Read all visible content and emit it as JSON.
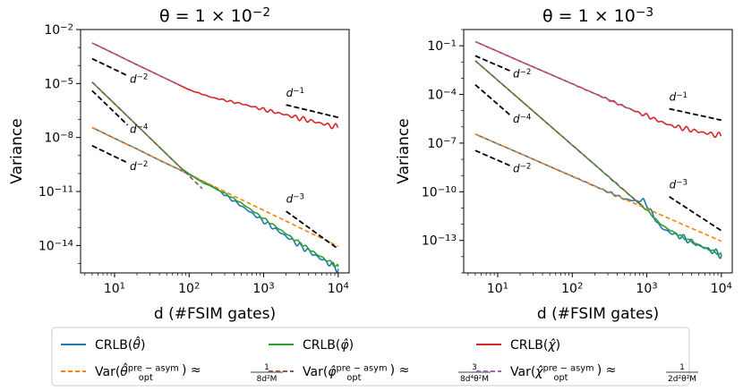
{
  "chart_data": [
    {
      "type": "line",
      "title": "θ = 1 × 10⁻²",
      "title_base": "θ = 1 × 10",
      "title_exp": "−2",
      "xlabel": "d (#FSIM gates)",
      "ylabel": "Variance",
      "x_scale": "log",
      "y_scale": "log",
      "xlim": [
        3.5,
        14000
      ],
      "ylim": [
        3e-16,
        0.01
      ],
      "x_ticks": [
        {
          "value": 10,
          "base": "10",
          "exp": "1"
        },
        {
          "value": 100,
          "base": "10",
          "exp": "2"
        },
        {
          "value": 1000,
          "base": "10",
          "exp": "3"
        },
        {
          "value": 10000,
          "base": "10",
          "exp": "4"
        }
      ],
      "y_ticks": [
        {
          "value": 0.01,
          "base": "10",
          "exp": "−2"
        },
        {
          "value": 1e-05,
          "base": "10",
          "exp": "−5"
        },
        {
          "value": 1e-08,
          "base": "10",
          "exp": "−8"
        },
        {
          "value": 1e-11,
          "base": "10",
          "exp": "−11"
        },
        {
          "value": 1e-14,
          "base": "10",
          "exp": "−14"
        }
      ],
      "series": [
        {
          "key": "crlb_theta",
          "d": [
            5,
            10,
            20,
            40,
            80,
            150,
            200,
            300,
            500,
            1000,
            2000,
            5000,
            10000
          ],
          "var": [
            3.6e-08,
            9e-09,
            2.3e-09,
            5.5e-10,
            1.4e-10,
            3.8e-11,
            2.1e-11,
            6.5e-12,
            1.6e-12,
            2.2e-13,
            3.2e-14,
            2.7e-15,
            5e-16
          ],
          "oscillate": true,
          "osc_amp": 0.22
        },
        {
          "key": "var_theta",
          "d": [
            5,
            10000
          ],
          "var": [
            3.6e-08,
            9e-15
          ]
        },
        {
          "key": "crlb_phi",
          "d": [
            5,
            10,
            20,
            40,
            80,
            150,
            200,
            300,
            500,
            1000,
            2000,
            5000,
            10000
          ],
          "var": [
            1.2e-05,
            7.5e-07,
            4.7e-08,
            2.9e-09,
            1.8e-10,
            3.2e-11,
            1.9e-11,
            8e-12,
            2.3e-12,
            3.2e-13,
            4.5e-14,
            3.5e-15,
            6.5e-16
          ],
          "oscillate": true,
          "osc_amp": 0.12
        },
        {
          "key": "var_phi",
          "d": [
            5,
            10,
            20,
            40,
            80,
            150
          ],
          "var": [
            1.2e-05,
            7.5e-07,
            4.7e-08,
            2.9e-09,
            1.8e-10,
            1.45e-11
          ]
        },
        {
          "key": "crlb_chi",
          "d": [
            5,
            10,
            20,
            40,
            80,
            100,
            200,
            500,
            1000,
            2000,
            5000,
            10000
          ],
          "var": [
            0.0018,
            0.00045,
            0.00011,
            2.8e-05,
            7e-06,
            4.5e-06,
            1.7e-06,
            7.5e-07,
            3.6e-07,
            1.8e-07,
            7.2e-08,
            3.6e-08
          ],
          "oscillate": true,
          "osc_amp": 0.18
        },
        {
          "key": "var_chi",
          "d": [
            5,
            10,
            20,
            40,
            70
          ],
          "var": [
            0.0018,
            0.00045,
            0.00011,
            2.8e-05,
            9.2e-06
          ]
        }
      ],
      "guides": [
        {
          "label_base": "d",
          "label_exp": "−2",
          "d": [
            5,
            15
          ],
          "var": [
            0.00024,
            2.7e-05
          ],
          "label_at": [
            16,
            1.1e-05
          ]
        },
        {
          "label_base": "d",
          "label_exp": "−4",
          "d": [
            5,
            15
          ],
          "var": [
            4e-06,
            4.9e-08
          ],
          "label_at": [
            16,
            1.8e-08
          ]
        },
        {
          "label_base": "d",
          "label_exp": "−2",
          "d": [
            5,
            15
          ],
          "var": [
            3.5e-09,
            3.9e-10
          ],
          "label_at": [
            16,
            1.6e-10
          ]
        },
        {
          "label_base": "d",
          "label_exp": "−1",
          "d": [
            2000,
            10000
          ],
          "var": [
            6.5e-07,
            1.3e-07
          ],
          "label_at": [
            2000,
            1.9e-06
          ]
        },
        {
          "label_base": "d",
          "label_exp": "−3",
          "d": [
            2000,
            10000
          ],
          "var": [
            8e-13,
            6.4e-15
          ],
          "label_at": [
            2000,
            2.4e-12
          ]
        }
      ]
    },
    {
      "type": "line",
      "title": "θ = 1 × 10⁻³",
      "title_base": "θ = 1 × 10",
      "title_exp": "−3",
      "xlabel": "d (#FSIM gates)",
      "ylabel": "Variance",
      "x_scale": "log",
      "y_scale": "log",
      "xlim": [
        3.5,
        14000
      ],
      "ylim": [
        1e-15,
        1
      ],
      "x_ticks": [
        {
          "value": 10,
          "base": "10",
          "exp": "1"
        },
        {
          "value": 100,
          "base": "10",
          "exp": "2"
        },
        {
          "value": 1000,
          "base": "10",
          "exp": "3"
        },
        {
          "value": 10000,
          "base": "10",
          "exp": "4"
        }
      ],
      "y_ticks": [
        {
          "value": 0.1,
          "base": "10",
          "exp": "−1"
        },
        {
          "value": 0.0001,
          "base": "10",
          "exp": "−4"
        },
        {
          "value": 1e-07,
          "base": "10",
          "exp": "−7"
        },
        {
          "value": 1e-10,
          "base": "10",
          "exp": "−10"
        },
        {
          "value": 1e-13,
          "base": "10",
          "exp": "−13"
        }
      ],
      "series": [
        {
          "key": "crlb_theta",
          "d": [
            5,
            10,
            20,
            50,
            100,
            300,
            500,
            700,
            900,
            1000,
            1500,
            2000,
            3000,
            5000,
            10000
          ],
          "var": [
            3.6e-07,
            9e-08,
            2.3e-08,
            3.6e-09,
            9e-10,
            1e-10,
            3.6e-11,
            2.7e-11,
            3e-11,
            1.6e-11,
            7e-13,
            3.2e-13,
            1.6e-13,
            5e-14,
            1.3e-14
          ],
          "oscillate": true,
          "osc_amp": 0.25
        },
        {
          "key": "var_theta",
          "d": [
            5,
            10000
          ],
          "var": [
            3.6e-07,
            9e-14
          ]
        },
        {
          "key": "crlb_phi",
          "d": [
            5,
            10,
            20,
            50,
            100,
            200,
            500,
            1000,
            1500,
            2000,
            3000,
            5000,
            10000
          ],
          "var": [
            0.012,
            0.00075,
            4.7e-05,
            1.2e-06,
            7.5e-08,
            4.7e-09,
            1.2e-10,
            7.5e-12,
            1.1e-12,
            4.5e-13,
            1.6e-13,
            5e-14,
            1.3e-14
          ],
          "oscillate": true,
          "osc_amp": 0.1
        },
        {
          "key": "var_phi",
          "d": [
            5,
            10,
            20,
            50,
            100,
            200,
            500,
            900
          ],
          "var": [
            0.012,
            0.00075,
            4.7e-05,
            1.2e-06,
            7.5e-08,
            4.7e-09,
            1.2e-10,
            1.1e-11
          ]
        },
        {
          "key": "crlb_chi",
          "d": [
            5,
            10,
            20,
            50,
            100,
            300,
            500,
            700,
            900,
            1000,
            1200,
            2000,
            5000,
            10000
          ],
          "var": [
            0.18,
            0.045,
            0.011,
            0.0018,
            0.00045,
            5e-05,
            1.8e-05,
            9.2e-06,
            5.6e-06,
            5.2e-06,
            3.3e-06,
            1.3e-06,
            5e-07,
            2.8e-07
          ],
          "oscillate": true,
          "osc_amp": 0.2
        },
        {
          "key": "var_chi",
          "d": [
            5,
            10,
            20,
            50,
            100,
            300,
            700
          ],
          "var": [
            0.18,
            0.045,
            0.011,
            0.0018,
            0.00045,
            5e-05,
            9.2e-06
          ]
        }
      ],
      "guides": [
        {
          "label_base": "d",
          "label_exp": "−2",
          "d": [
            5,
            15
          ],
          "var": [
            0.024,
            0.0027
          ],
          "label_at": [
            16,
            0.0011
          ]
        },
        {
          "label_base": "d",
          "label_exp": "−4",
          "d": [
            5,
            15
          ],
          "var": [
            0.0004,
            4.9e-06
          ],
          "label_at": [
            16,
            1.8e-06
          ]
        },
        {
          "label_base": "d",
          "label_exp": "−2",
          "d": [
            5,
            15
          ],
          "var": [
            3.5e-08,
            3.9e-09
          ],
          "label_at": [
            16,
            1.6e-09
          ]
        },
        {
          "label_base": "d",
          "label_exp": "−1",
          "d": [
            2000,
            10000
          ],
          "var": [
            1.3e-05,
            2.6e-06
          ],
          "label_at": [
            2000,
            4e-05
          ]
        },
        {
          "label_base": "d",
          "label_exp": "−3",
          "d": [
            2000,
            10000
          ],
          "var": [
            5e-11,
            4e-13
          ],
          "label_at": [
            2000,
            1.6e-10
          ]
        }
      ]
    }
  ],
  "legend": {
    "position": "bottom-center",
    "entries": [
      {
        "key": "crlb_theta",
        "color": "#1f77b4",
        "dash": false,
        "label": "CRLB(θ̂)",
        "lhs": "CRLB(",
        "sym": "θ̂",
        "rhs": ")"
      },
      {
        "key": "crlb_phi",
        "color": "#2ca02c",
        "dash": false,
        "label": "CRLB(φ̂)",
        "lhs": "CRLB(",
        "sym": "φ̂",
        "rhs": ")"
      },
      {
        "key": "crlb_chi",
        "color": "#d62728",
        "dash": false,
        "label": "CRLB(χ̂)",
        "lhs": "CRLB(",
        "sym": "χ̂",
        "rhs": ")"
      },
      {
        "key": "var_theta",
        "color": "#ff7f0e",
        "dash": true,
        "label": "Var(θ̂_opt^pre−asym) ≈ 1/(8d²M)",
        "lhs": "Var(",
        "sym": "θ̂",
        "sup": "pre − asym",
        "sub": "opt",
        "rhs": ") ≈",
        "num": "1",
        "den": "8d²M"
      },
      {
        "key": "var_phi",
        "color": "#8c564b",
        "dash": true,
        "label": "Var(φ̂_opt^pre−asym) ≈ 3/(8d⁴θ²M)",
        "lhs": "Var(",
        "sym": "φ̂",
        "sup": "pre − asym",
        "sub": "opt",
        "rhs": ") ≈",
        "num": "3",
        "den": "8d⁴θ²M"
      },
      {
        "key": "var_chi",
        "color": "#9467bd",
        "dash": true,
        "label": "Var(χ̂_opt^pre−asym) ≈ 1/(2d²θ²M)",
        "lhs": "Var(",
        "sym": "χ̂",
        "sup": "pre − asym",
        "sub": "opt",
        "rhs": ") ≈",
        "num": "1",
        "den": "2d²θ²M"
      }
    ]
  }
}
